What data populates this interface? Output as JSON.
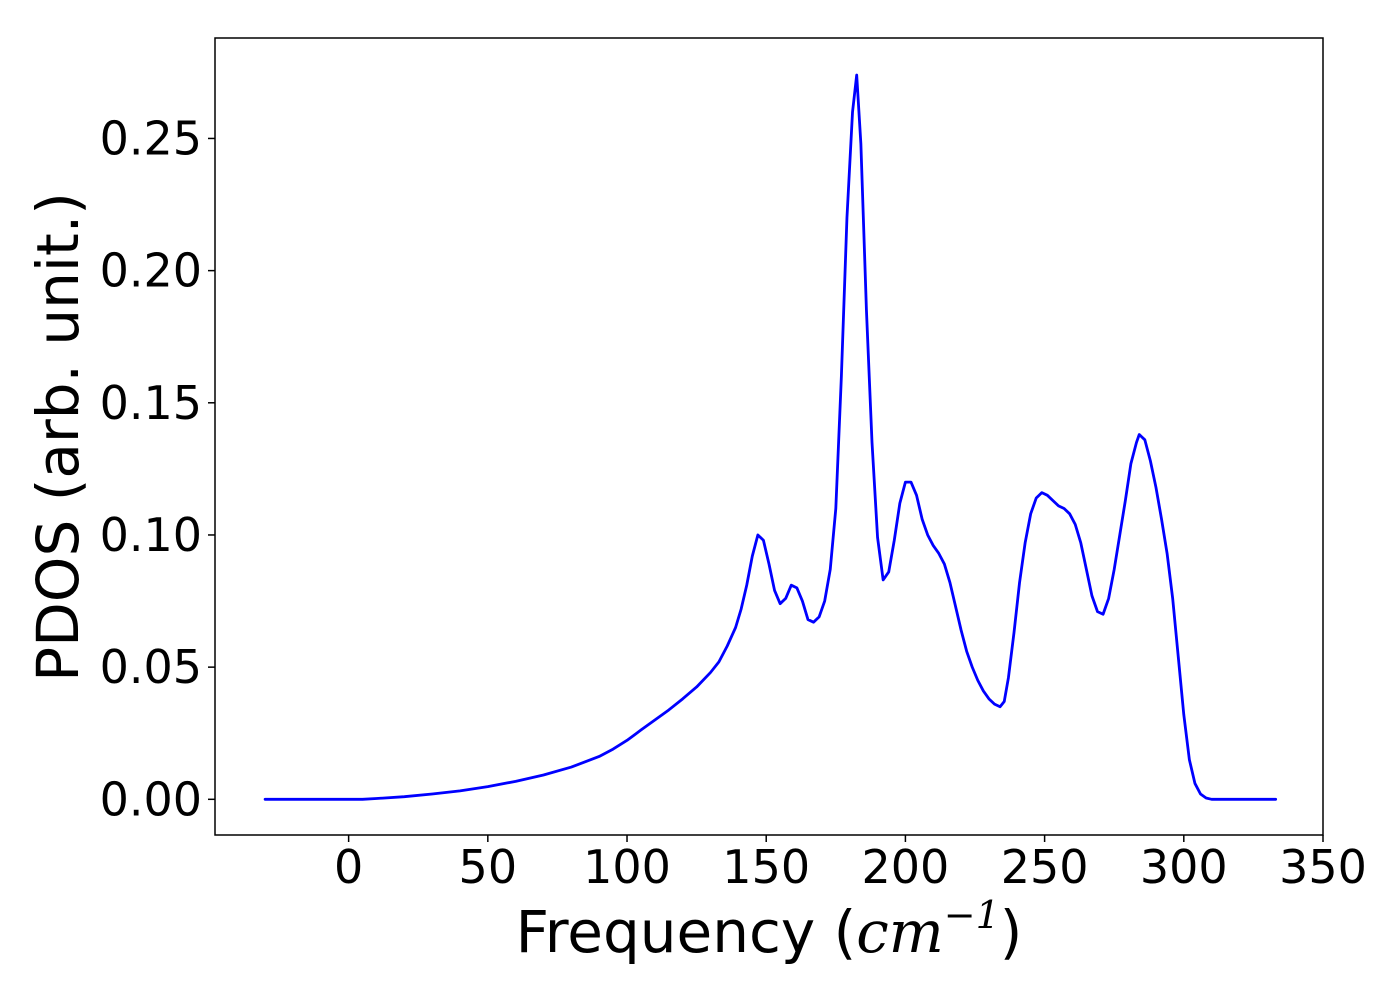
{
  "chart_data": {
    "type": "line",
    "title": "",
    "xlabel": "Frequency (",
    "xlabel_math_base": "cm",
    "xlabel_math_exponent": "−1",
    "xlabel_suffix": ")",
    "ylabel": "PDOS (arb. unit.)",
    "xlim": [
      -48,
      350
    ],
    "ylim": [
      -0.0135,
      0.288
    ],
    "x_ticks": [
      0,
      50,
      100,
      150,
      200,
      250,
      300,
      350
    ],
    "x_tick_labels": [
      "0",
      "50",
      "100",
      "150",
      "200",
      "250",
      "300",
      "350"
    ],
    "y_ticks": [
      0.0,
      0.05,
      0.1,
      0.15,
      0.2,
      0.25
    ],
    "y_tick_labels": [
      "0.00",
      "0.05",
      "0.10",
      "0.15",
      "0.20",
      "0.25"
    ],
    "grid": false,
    "legend": "none",
    "series": [
      {
        "color": "#0000ff",
        "x": [
          -30,
          0,
          5,
          10,
          20,
          30,
          40,
          50,
          60,
          70,
          80,
          90,
          95,
          100,
          105,
          110,
          115,
          120,
          125,
          130,
          133,
          136,
          139,
          141,
          143,
          145,
          147,
          149,
          151,
          153,
          155,
          157,
          159,
          161,
          163,
          165,
          167,
          169,
          171,
          173,
          175,
          177,
          179,
          181,
          182.5,
          184,
          186,
          188,
          190,
          192,
          194,
          196,
          198,
          200,
          202,
          204,
          206,
          208,
          210,
          212,
          214,
          216,
          218,
          220,
          222,
          224,
          226,
          228,
          230,
          232,
          234,
          235.5,
          237,
          239,
          241,
          243,
          245,
          247,
          249,
          251,
          253,
          255,
          257,
          259,
          261,
          263,
          265,
          267,
          269,
          271,
          273,
          275,
          277,
          279,
          281,
          283,
          284,
          286,
          288,
          290,
          292,
          294,
          296,
          298,
          300,
          302,
          304,
          306,
          308,
          310,
          315,
          333
        ],
        "y": [
          0.0,
          0.0,
          0.0,
          0.0003,
          0.001,
          0.002,
          0.0032,
          0.0048,
          0.0068,
          0.0092,
          0.0122,
          0.0162,
          0.019,
          0.0223,
          0.0262,
          0.03,
          0.0338,
          0.038,
          0.0425,
          0.048,
          0.052,
          0.058,
          0.065,
          0.072,
          0.081,
          0.092,
          0.1,
          0.098,
          0.089,
          0.079,
          0.074,
          0.076,
          0.081,
          0.08,
          0.075,
          0.068,
          0.067,
          0.069,
          0.075,
          0.087,
          0.11,
          0.16,
          0.22,
          0.26,
          0.274,
          0.248,
          0.185,
          0.135,
          0.099,
          0.083,
          0.086,
          0.098,
          0.112,
          0.12,
          0.12,
          0.115,
          0.106,
          0.1,
          0.096,
          0.093,
          0.089,
          0.082,
          0.073,
          0.064,
          0.056,
          0.05,
          0.045,
          0.041,
          0.038,
          0.036,
          0.035,
          0.037,
          0.046,
          0.063,
          0.082,
          0.097,
          0.108,
          0.114,
          0.116,
          0.115,
          0.113,
          0.111,
          0.11,
          0.108,
          0.104,
          0.097,
          0.087,
          0.077,
          0.071,
          0.07,
          0.076,
          0.087,
          0.1,
          0.113,
          0.127,
          0.135,
          0.138,
          0.136,
          0.128,
          0.118,
          0.106,
          0.093,
          0.076,
          0.054,
          0.032,
          0.015,
          0.006,
          0.002,
          0.0005,
          0.0,
          0.0,
          0.0
        ]
      }
    ]
  }
}
